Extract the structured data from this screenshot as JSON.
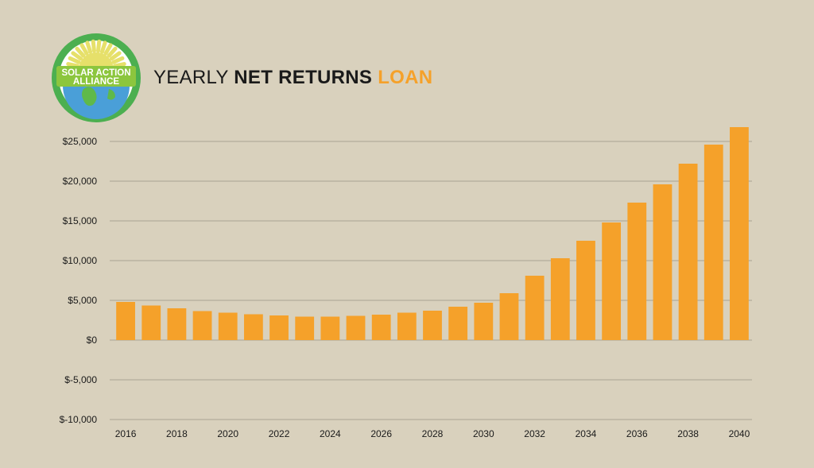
{
  "logo": {
    "line1": "SOLAR ACTION",
    "line2": "ALLIANCE",
    "ring_color": "#4caf50",
    "sun_color": "#e6e06a",
    "earth_color": "#4a9fd8"
  },
  "title": {
    "part1": "YEARLY ",
    "part2": "NET RETURNS",
    "part3": " LOAN",
    "accent_color": "#f5a12a"
  },
  "chart_data": {
    "type": "bar",
    "title": "YEARLY NET RETURNS LOAN",
    "categories": [
      "2016",
      "2017",
      "2018",
      "2019",
      "2020",
      "2021",
      "2022",
      "2023",
      "2024",
      "2025",
      "2026",
      "2027",
      "2028",
      "2029",
      "2030",
      "2031",
      "2032",
      "2033",
      "2034",
      "2035",
      "2036",
      "2037",
      "2038",
      "2039",
      "2040"
    ],
    "x_tick_labels": [
      "2016",
      "2018",
      "2020",
      "2022",
      "2024",
      "2026",
      "2028",
      "2030",
      "2032",
      "2034",
      "2036",
      "2038",
      "2040"
    ],
    "values": [
      4800,
      4350,
      4000,
      3650,
      3450,
      3250,
      3100,
      2950,
      2950,
      3050,
      3200,
      3450,
      3700,
      4200,
      4700,
      5900,
      8100,
      10300,
      12500,
      14800,
      17300,
      19600,
      22200,
      24600,
      26800
    ],
    "ylim": [
      -10000,
      25000
    ],
    "y_ticks": [
      25000,
      20000,
      15000,
      10000,
      5000,
      0,
      -5000,
      -10000
    ],
    "y_tick_labels": [
      "$25,000",
      "$20,000",
      "$15,000",
      "$10,000",
      "$5,000",
      "$0",
      "$-5,000",
      "$-10,000"
    ],
    "grid": true,
    "bar_color": "#f5a12a",
    "grid_color": "#a9a394"
  }
}
